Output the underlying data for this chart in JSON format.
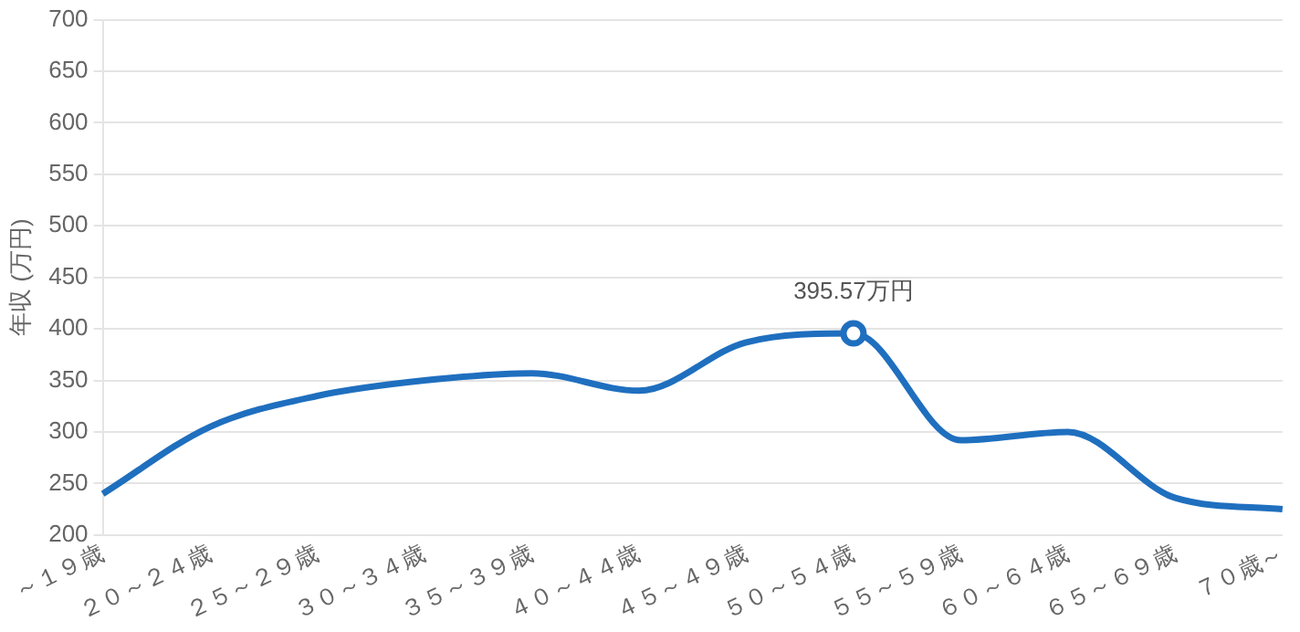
{
  "chart_data": {
    "type": "line",
    "ylabel": "年収 (万円)",
    "categories": [
      "～１９歳",
      "２０～２４歳",
      "２５～２９歳",
      "３０～３４歳",
      "３５～３９歳",
      "４０～４４歳",
      "４５～４９歳",
      "５０～５４歳",
      "５５～５９歳",
      "６０～６４歳",
      "６５～６９歳",
      "７０歳～"
    ],
    "series": [
      {
        "color": "#1f6fbf",
        "values": [
          240,
          305,
          335,
          350,
          357,
          340,
          387,
          395.57,
          292,
          300,
          236,
          225
        ],
        "value_labels": [
          null,
          null,
          null,
          null,
          null,
          null,
          null,
          "395.57万円",
          null,
          null,
          null,
          null
        ]
      }
    ],
    "ylim": [
      200,
      700
    ],
    "yticks": [
      200,
      250,
      300,
      350,
      400,
      450,
      500,
      550,
      600,
      650,
      700
    ],
    "grid": "y",
    "legend": false
  }
}
